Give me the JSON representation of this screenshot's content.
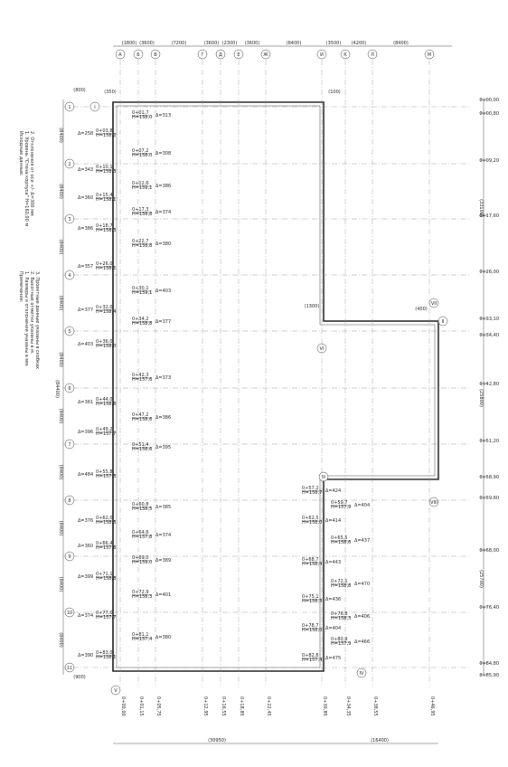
{
  "columns": [
    {
      "label": "А",
      "dim": "(1800)"
    },
    {
      "label": "Б",
      "dim": "(3600)"
    },
    {
      "label": "В",
      "dim": "(7200)"
    },
    {
      "label": "Г",
      "dim": "(3600)"
    },
    {
      "label": "Д",
      "dim": "(2300)"
    },
    {
      "label": "Е",
      "dim": "(3600)"
    },
    {
      "label": "Ж",
      "dim": "(8400)"
    },
    {
      "label": "И",
      "dim": "(3500)"
    },
    {
      "label": "К",
      "dim": "(4200)"
    },
    {
      "label": "Л",
      "dim": "(8400)"
    },
    {
      "label": "М",
      "dim": null
    }
  ],
  "rows": [
    "1",
    "2",
    "3",
    "4",
    "5",
    "6",
    "7",
    "8",
    "9",
    "10",
    "11"
  ],
  "row_dims": [
    "(8400)",
    "(8400)",
    "(8400)",
    "(8400)",
    "(8400)",
    "(8400)",
    "(8400)",
    "(8400)",
    "(8400)",
    "(8400)"
  ],
  "chainages_right": [
    "0+00,00",
    "0+00,80",
    "0+09,20",
    "0+17,60",
    "0+26,00",
    "0+33,10",
    "0+34,40",
    "0+42,80",
    "0+51,20",
    "0+58,90",
    "0+59,60",
    "0+68,00",
    "0+76,40",
    "0+84,80",
    "0+85,90"
  ],
  "right_dims": [
    "(33100)",
    "(25800)",
    "(25700)"
  ],
  "chainages_bottom": [
    "0+00,00",
    "0+01,15",
    "0+05,75",
    "0+12,95",
    "0+16,55",
    "0+18,85",
    "0+22,45",
    "0+30,85",
    "0+34,35",
    "0+38,55",
    "0+46,95"
  ],
  "bottom_dims": [
    "(30950)",
    "(16400)"
  ],
  "small_dims": [
    "(350)",
    "(100)",
    "(400)",
    "(1300)",
    "(800)",
    "(900)"
  ],
  "total_dim": "(84400)",
  "roman": [
    "I",
    "II",
    "III",
    "IV",
    "V",
    "VI",
    "VII",
    "VIII"
  ],
  "points_left": [
    [
      "0+01,7",
      "H=158,0",
      "Δ=313"
    ],
    [
      "0+03,8",
      "H=158,2",
      "Δ=258"
    ],
    [
      "0+07,2",
      "H=158,0",
      "Δ=308"
    ],
    [
      "0+10,1",
      "H=158,3",
      "Δ=343"
    ],
    [
      "0+12,6",
      "H=159,1",
      "Δ=386"
    ],
    [
      "0+15,4",
      "H=158,1",
      "Δ=360"
    ],
    [
      "0+17,3",
      "H=158,8",
      "Δ=374"
    ],
    [
      "0+18,7",
      "H=158,3",
      "Δ=386"
    ],
    [
      "0+22,7",
      "H=158,8",
      "Δ=380"
    ],
    [
      "0+26,0",
      "H=158,1",
      "Δ=357"
    ],
    [
      "0+30,1",
      "H=159,1",
      "Δ=403"
    ],
    [
      "0+32,0",
      "H=158,4",
      "Δ=377"
    ],
    [
      "0+34,2",
      "H=158,8",
      "Δ=377"
    ],
    [
      "0+36,0",
      "H=158,0",
      "Δ=403"
    ],
    [
      "0+42,3",
      "H=157,6",
      "Δ=373"
    ],
    [
      "0+44,0",
      "H=158,6",
      "Δ=361"
    ],
    [
      "0+47,2",
      "H=158,6",
      "Δ=386"
    ],
    [
      "0+49,2",
      "H=157,7",
      "Δ=396"
    ],
    [
      "0+51,4",
      "H=158,6",
      "Δ=395"
    ],
    [
      "0+55,8",
      "H=157,5",
      "Δ=484"
    ],
    [
      "0+60,8",
      "H=158,5",
      "Δ=385"
    ],
    [
      "0+62,0",
      "H=158,5",
      "Δ=376"
    ],
    [
      "0+64,6",
      "H=157,8",
      "Δ=374"
    ],
    [
      "0+66,4",
      "H=157,6",
      "Δ=360"
    ],
    [
      "0+69,0",
      "H=159,0",
      "Δ=389"
    ],
    [
      "0+71,1",
      "H=158,8",
      "Δ=399"
    ],
    [
      "0+72,9",
      "H=158,3",
      "Δ=401"
    ],
    [
      "0+77,0",
      "H=157,7",
      "Δ=374"
    ],
    [
      "0+81,1",
      "H=157,4",
      "Δ=380"
    ],
    [
      "0+83,0",
      "H=158,1",
      "Δ=390"
    ]
  ],
  "points_right": [
    [
      "0+57,2",
      "H=158,7",
      "Δ=424"
    ],
    [
      "0+59,7",
      "H=157,9",
      "Δ=404"
    ],
    [
      "0+62,5",
      "H=158,0",
      "Δ=414"
    ],
    [
      "0+65,5",
      "H=158,6",
      "Δ=437"
    ],
    [
      "0+68,7",
      "H=158,4",
      "Δ=443"
    ],
    [
      "0+72,1",
      "H=158,8",
      "Δ=470"
    ],
    [
      "0+75,1",
      "H=158,3",
      "Δ=436"
    ],
    [
      "0+76,8",
      "H=158,3",
      "Δ=406"
    ],
    [
      "0+78,7",
      "H=158,0",
      "Δ=404"
    ],
    [
      "0+80,9",
      "H=157,9",
      "Δ=466"
    ],
    [
      "0+82,8",
      "H=157,4",
      "Δ=475"
    ]
  ],
  "notes_source": [
    "Исходные данные:",
    "1. Уровень \"Стена корпуса\" Н=160,00 м",
    "2. Отклонения от оси +/- Δ=300 мм"
  ],
  "notes": [
    "Примечание:",
    "1. Размеры и отклонения указаны в мм.",
    "2. Высотные отметки указаны в м.",
    "3. Проектные данные указаны в скобках"
  ]
}
